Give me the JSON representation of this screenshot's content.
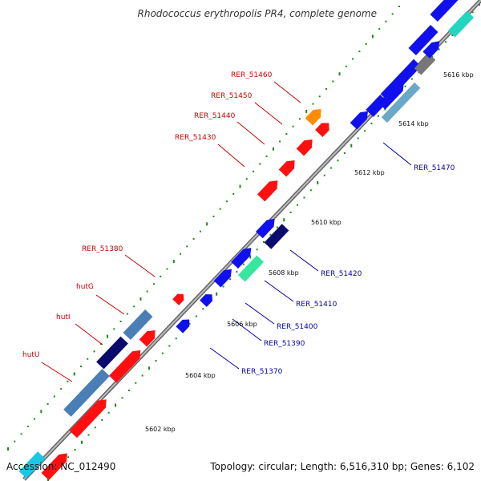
{
  "header": {
    "title": "Rhodococcus erythropolis PR4, complete genome"
  },
  "footer": {
    "accession": "Accession: NC_012490",
    "summary": "Topology: circular; Length: 6,516,310 bp; Genes: 6,102"
  },
  "colors": {
    "background": "#ffffff",
    "top_strand_label": "#cc0000",
    "bottom_strand_label": "#0000aa",
    "backbone": "#888888",
    "tick": "#1a8a1a"
  },
  "scale_ticks": [
    "5602 kbp",
    "5604 kbp",
    "5606 kbp",
    "5608 kbp",
    "5610 kbp",
    "5612 kbp",
    "5614 kbp",
    "5616 kbp"
  ],
  "gene_labels_top": [
    "hutU",
    "hutI",
    "hutG",
    "RER_51380",
    "RER_51430",
    "RER_51440",
    "RER_51450",
    "RER_51460"
  ],
  "gene_labels_bottom": [
    "RER_51370",
    "RER_51390",
    "RER_51400",
    "RER_51410",
    "RER_51420",
    "RER_51470"
  ]
}
